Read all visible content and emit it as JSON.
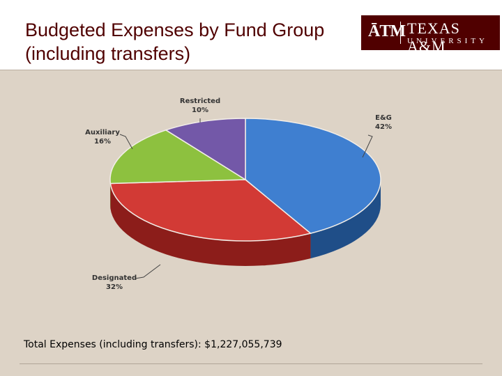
{
  "header": {
    "title": "Budgeted Expenses by Fund Group (including transfers)"
  },
  "logo": {
    "mark": "ĀTM",
    "name": "TEXAS A&M",
    "sub": "UNIVERSITY",
    "color": "#500000"
  },
  "footer": {
    "total_text": "Total Expenses (including transfers): $1,227,055,739"
  },
  "chart_data": {
    "type": "pie",
    "title": "",
    "slices": [
      {
        "label": "E&G",
        "value": 42,
        "pct_label": "42%",
        "color": "#3f7fd0",
        "side": "#1f4e88"
      },
      {
        "label": "Designated",
        "value": 32,
        "pct_label": "32%",
        "color": "#d23a35",
        "side": "#8c1d1a"
      },
      {
        "label": "Auxiliary",
        "value": 16,
        "pct_label": "16%",
        "color": "#8dc13f",
        "side": "#5a8324"
      },
      {
        "label": "Restricted",
        "value": 10,
        "pct_label": "10%",
        "color": "#7358a8",
        "side": "#47336d"
      }
    ]
  }
}
